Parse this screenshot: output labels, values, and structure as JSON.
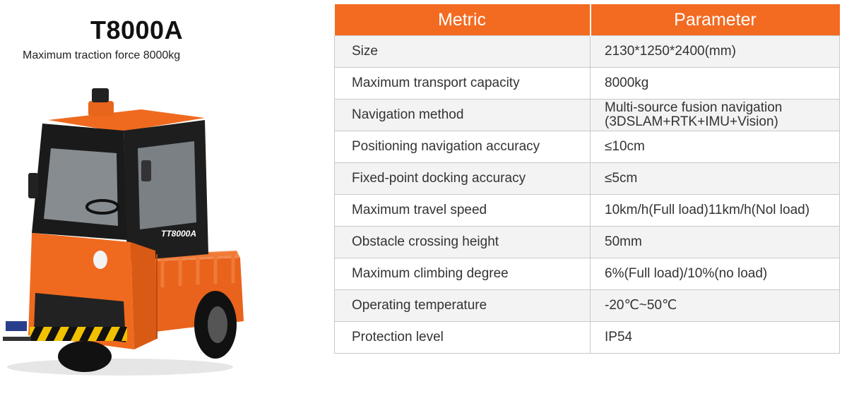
{
  "product": {
    "model": "T8000A",
    "subtitle": "Maximum traction force  8000kg",
    "vehicle_badge": "TT8000A"
  },
  "table": {
    "headers": [
      "Metric",
      "Parameter"
    ],
    "rows": [
      {
        "metric": "Size",
        "parameter": "2130*1250*2400(mm)"
      },
      {
        "metric": "Maximum transport capacity",
        "parameter": "8000kg"
      },
      {
        "metric": "Navigation method",
        "parameter": "Multi-source fusion navigation (3DSLAM+RTK+IMU+Vision)"
      },
      {
        "metric": "Positioning navigation accuracy",
        "parameter": "≤10cm"
      },
      {
        "metric": "Fixed-point docking accuracy",
        "parameter": "≤5cm"
      },
      {
        "metric": "Maximum travel speed",
        "parameter": "10km/h(Full load)11km/h(Nol load)"
      },
      {
        "metric": "Obstacle crossing height",
        "parameter": "50mm"
      },
      {
        "metric": "Maximum climbing degree",
        "parameter": "6%(Full load)/10%(no load)"
      },
      {
        "metric": "Operating temperature",
        "parameter": "-20℃~50℃"
      },
      {
        "metric": "Protection level",
        "parameter": "IP54"
      }
    ]
  },
  "colors": {
    "accent": "#f36a21",
    "cab": "#1a1a1a",
    "body": "#ef6a1f"
  }
}
